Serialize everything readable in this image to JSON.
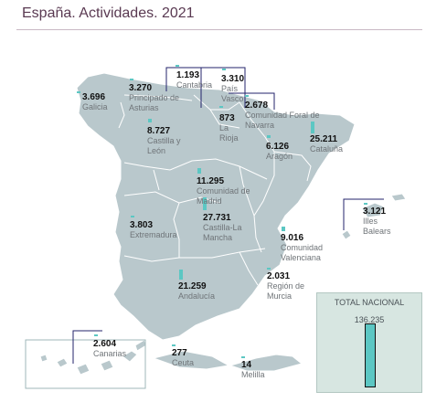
{
  "title": "España. Actividades. 2021",
  "colors": {
    "land": "#b9c8cc",
    "border": "#ffffff",
    "bar": "#5cc7c3",
    "title": "#5a3a52",
    "label": "#6f7478"
  },
  "regions": [
    {
      "id": "galicia",
      "value": "3.696",
      "name": "Galicia",
      "bar_value": 3696
    },
    {
      "id": "asturias",
      "value": "3.270",
      "name": "Principado de\nAsturias",
      "bar_value": 3270
    },
    {
      "id": "cantabria",
      "value": "1.193",
      "name": "Cantabria",
      "bar_value": 1193
    },
    {
      "id": "pais-vasco",
      "value": "3.310",
      "name": "País\nVasco",
      "bar_value": 3310
    },
    {
      "id": "navarra",
      "value": "2.678",
      "name": "Comunidad Foral de\nNavarra",
      "bar_value": 2678
    },
    {
      "id": "la-rioja",
      "value": "873",
      "name": "La\nRioja",
      "bar_value": 873
    },
    {
      "id": "castilla-leon",
      "value": "8.727",
      "name": "Castilla y\nLeón",
      "bar_value": 8727
    },
    {
      "id": "aragon",
      "value": "6.126",
      "name": "Aragón",
      "bar_value": 6126
    },
    {
      "id": "cataluna",
      "value": "25.211",
      "name": "Cataluña",
      "bar_value": 25211
    },
    {
      "id": "madrid",
      "value": "11.295",
      "name": "Comunidad de\nMadrid",
      "bar_value": 11295
    },
    {
      "id": "extremadura",
      "value": "3.803",
      "name": "Extremadura",
      "bar_value": 3803
    },
    {
      "id": "castilla-la-mancha",
      "value": "27.731",
      "name": "Castilla-La\nMancha",
      "bar_value": 27731
    },
    {
      "id": "valenciana",
      "value": "9.016",
      "name": "Comunidad\nValenciana",
      "bar_value": 9016
    },
    {
      "id": "baleares",
      "value": "3.121",
      "name": "Illes\nBalears",
      "bar_value": 3121
    },
    {
      "id": "andalucia",
      "value": "21.259",
      "name": "Andalucía",
      "bar_value": 21259
    },
    {
      "id": "murcia",
      "value": "2.031",
      "name": "Región de\nMurcia",
      "bar_value": 2031
    },
    {
      "id": "canarias",
      "value": "2.604",
      "name": "Canarias",
      "bar_value": 2604
    },
    {
      "id": "ceuta",
      "value": "277",
      "name": "Ceuta",
      "bar_value": 277
    },
    {
      "id": "melilla",
      "value": "14",
      "name": "Melilla",
      "bar_value": 14
    }
  ],
  "total": {
    "title": "TOTAL NACIONAL",
    "value": "136.235",
    "bar_value": 136235
  }
}
